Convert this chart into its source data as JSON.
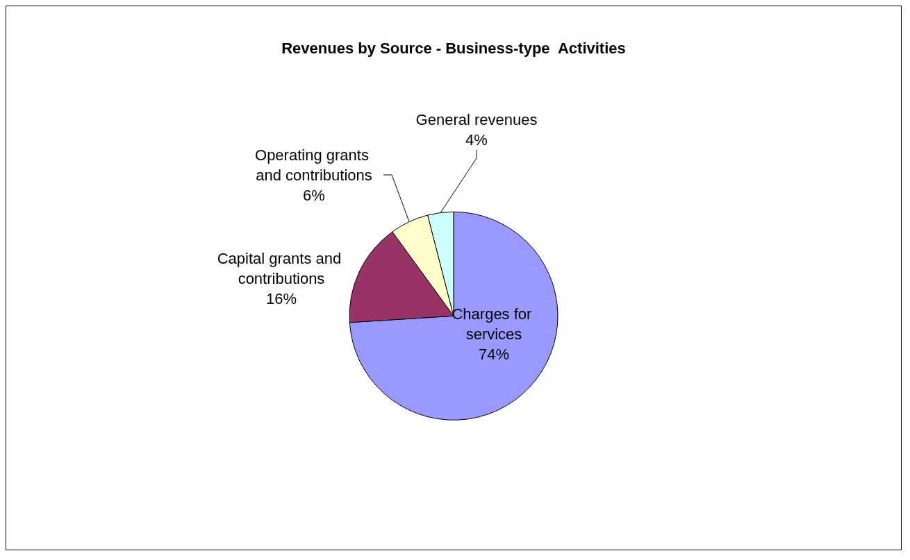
{
  "chart_data": {
    "type": "pie",
    "title": "Revenues by Source - Business-type  Activities",
    "categories": [
      "Charges for services",
      "Capital grants and contributions",
      "Operating grants and contributions",
      "General revenues"
    ],
    "values": [
      74,
      16,
      6,
      4
    ],
    "colors": [
      "#9999ff",
      "#993366",
      "#ffffcc",
      "#ccffff"
    ],
    "value_labels": [
      "74%",
      "16%",
      "6%",
      "4%"
    ],
    "legend": false
  }
}
